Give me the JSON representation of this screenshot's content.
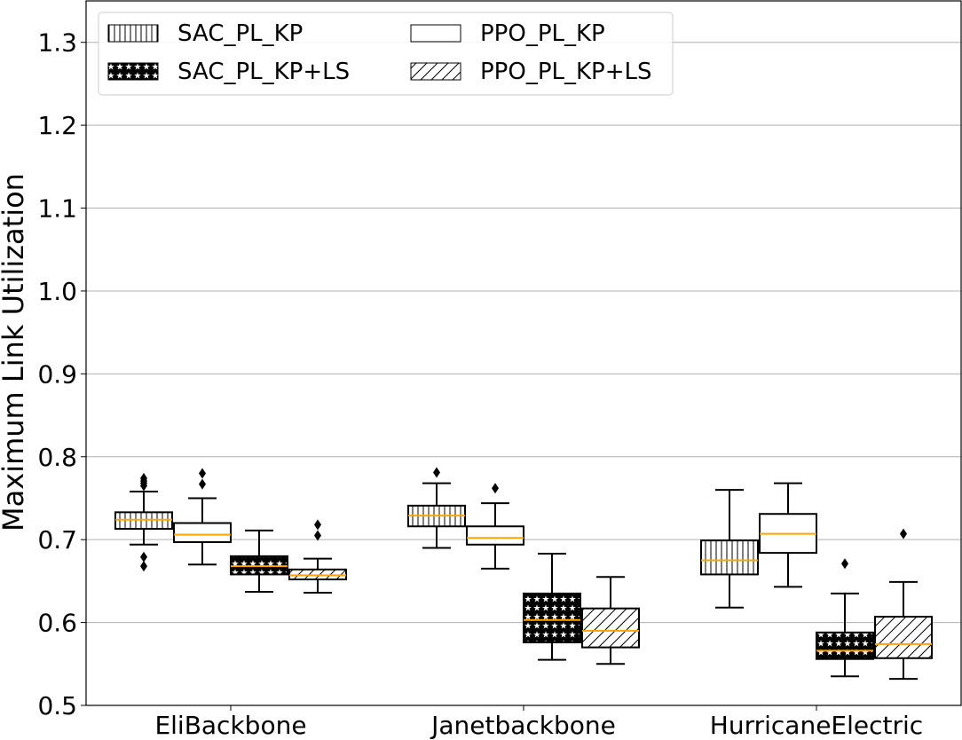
{
  "chart_data": {
    "type": "box",
    "title": "",
    "xlabel": "",
    "ylabel": "Maximum Link Utilization",
    "ylim": [
      0.5,
      1.35
    ],
    "yticks": [
      "0.5",
      "0.6",
      "0.7",
      "0.8",
      "0.9",
      "1.0",
      "1.1",
      "1.2",
      "1.3"
    ],
    "grid": "horizontal",
    "legend_position": "top-left",
    "categories": [
      "EliBackbone",
      "Janetbackbone",
      "HurricaneElectric"
    ],
    "median_color": "#ffa500",
    "series": [
      {
        "name": "SAC_PL_KP",
        "hatch": "vertical-lines",
        "boxes": [
          {
            "whislo": 0.694,
            "q1": 0.713,
            "med": 0.724,
            "q3": 0.733,
            "whishi": 0.758,
            "fliers": [
              0.668,
              0.679,
              0.765,
              0.768,
              0.771,
              0.774
            ]
          },
          {
            "whislo": 0.69,
            "q1": 0.716,
            "med": 0.729,
            "q3": 0.741,
            "whishi": 0.768,
            "fliers": [
              0.781
            ]
          },
          {
            "whislo": 0.618,
            "q1": 0.658,
            "med": 0.675,
            "q3": 0.699,
            "whishi": 0.76,
            "fliers": []
          }
        ]
      },
      {
        "name": "PPO_PL_KP",
        "hatch": "none",
        "boxes": [
          {
            "whislo": 0.67,
            "q1": 0.697,
            "med": 0.706,
            "q3": 0.72,
            "whishi": 0.75,
            "fliers": [
              0.767,
              0.78
            ]
          },
          {
            "whislo": 0.665,
            "q1": 0.694,
            "med": 0.702,
            "q3": 0.716,
            "whishi": 0.744,
            "fliers": [
              0.762
            ]
          },
          {
            "whislo": 0.643,
            "q1": 0.684,
            "med": 0.707,
            "q3": 0.731,
            "whishi": 0.768,
            "fliers": []
          }
        ]
      },
      {
        "name": "SAC_PL_KP+LS",
        "hatch": "stars",
        "boxes": [
          {
            "whislo": 0.637,
            "q1": 0.658,
            "med": 0.668,
            "q3": 0.68,
            "whishi": 0.711,
            "fliers": []
          },
          {
            "whislo": 0.555,
            "q1": 0.576,
            "med": 0.603,
            "q3": 0.635,
            "whishi": 0.683,
            "fliers": []
          },
          {
            "whislo": 0.535,
            "q1": 0.556,
            "med": 0.566,
            "q3": 0.588,
            "whishi": 0.635,
            "fliers": [
              0.671
            ]
          }
        ]
      },
      {
        "name": "PPO_PL_KP+LS",
        "hatch": "diagonal",
        "boxes": [
          {
            "whislo": 0.636,
            "q1": 0.652,
            "med": 0.657,
            "q3": 0.664,
            "whishi": 0.677,
            "fliers": [
              0.705,
              0.718
            ]
          },
          {
            "whislo": 0.55,
            "q1": 0.57,
            "med": 0.59,
            "q3": 0.617,
            "whishi": 0.655,
            "fliers": []
          },
          {
            "whislo": 0.532,
            "q1": 0.557,
            "med": 0.574,
            "q3": 0.607,
            "whishi": 0.649,
            "fliers": [
              0.707
            ]
          }
        ]
      }
    ],
    "legend": [
      {
        "label": "SAC_PL_KP",
        "hatch": "vertical-lines"
      },
      {
        "label": "PPO_PL_KP",
        "hatch": "none"
      },
      {
        "label": "SAC_PL_KP+LS",
        "hatch": "stars"
      },
      {
        "label": "PPO_PL_KP+LS",
        "hatch": "diagonal"
      }
    ]
  }
}
